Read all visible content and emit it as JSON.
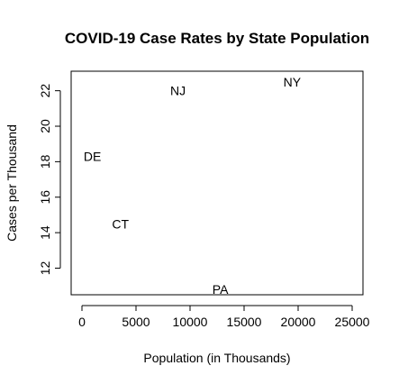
{
  "chart_data": {
    "type": "scatter",
    "title": "COVID-19 Case Rates by State Population",
    "xlabel": "Population (in Thousands)",
    "ylabel": "Cases per Thousand",
    "xlim": [
      -1000,
      26000
    ],
    "ylim": [
      10.5,
      23.1
    ],
    "x_ticks": [
      0,
      5000,
      10000,
      15000,
      20000,
      25000
    ],
    "x_tick_labels": [
      "0",
      "5000",
      "10000",
      "15000",
      "20000",
      "25000"
    ],
    "y_ticks": [
      12,
      14,
      16,
      18,
      20,
      22
    ],
    "y_tick_labels": [
      "12",
      "14",
      "16",
      "18",
      "20",
      "22"
    ],
    "grid": false,
    "legend": "none",
    "points": [
      {
        "label": "NY",
        "x": 19450,
        "y": 22.5
      },
      {
        "label": "NJ",
        "x": 8880,
        "y": 22.0
      },
      {
        "label": "DE",
        "x": 970,
        "y": 18.3
      },
      {
        "label": "CT",
        "x": 3560,
        "y": 14.5
      },
      {
        "label": "PA",
        "x": 12800,
        "y": 10.8
      }
    ]
  }
}
